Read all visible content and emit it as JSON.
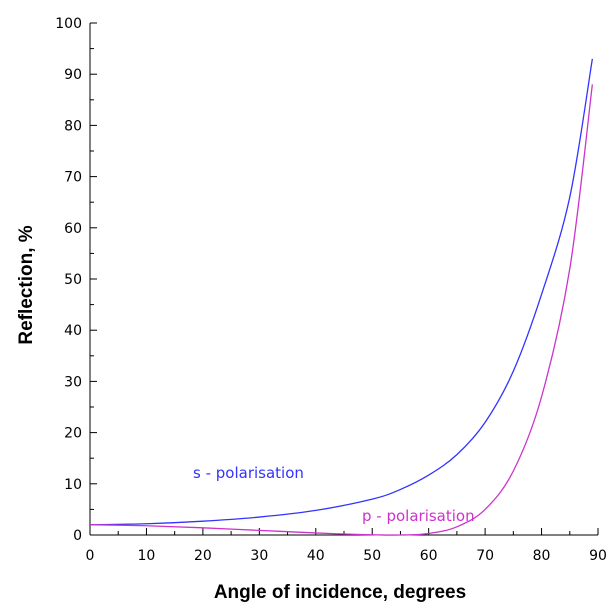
{
  "chart_data": {
    "type": "line",
    "title": "",
    "xlabel": "Angle of incidence, degrees",
    "ylabel": "Reflection, %",
    "xlim": [
      0,
      90
    ],
    "ylim": [
      0,
      100
    ],
    "xticks": [
      0,
      10,
      20,
      30,
      40,
      50,
      60,
      70,
      80,
      90
    ],
    "yticks": [
      0,
      10,
      20,
      30,
      40,
      50,
      60,
      70,
      80,
      90,
      100
    ],
    "grid": false,
    "legend": "none",
    "series": [
      {
        "name": "s - polarisation",
        "color": "#3333ff",
        "x": [
          0,
          10,
          20,
          30,
          40,
          50,
          55,
          60,
          65,
          70,
          75,
          80,
          85,
          89
        ],
        "y": [
          2.0,
          2.2,
          2.7,
          3.5,
          4.8,
          7.0,
          8.9,
          11.7,
          15.7,
          22.0,
          32.0,
          47.0,
          66.0,
          93.0
        ]
      },
      {
        "name": "p - polarisation",
        "color": "#cc33cc",
        "x": [
          0,
          10,
          20,
          30,
          40,
          45,
          50,
          55,
          60,
          65,
          70,
          75,
          80,
          85,
          89
        ],
        "y": [
          2.0,
          1.8,
          1.4,
          0.9,
          0.4,
          0.2,
          0.05,
          0.0,
          0.3,
          1.6,
          5.0,
          12.5,
          27.0,
          52.0,
          88.0
        ]
      }
    ]
  }
}
